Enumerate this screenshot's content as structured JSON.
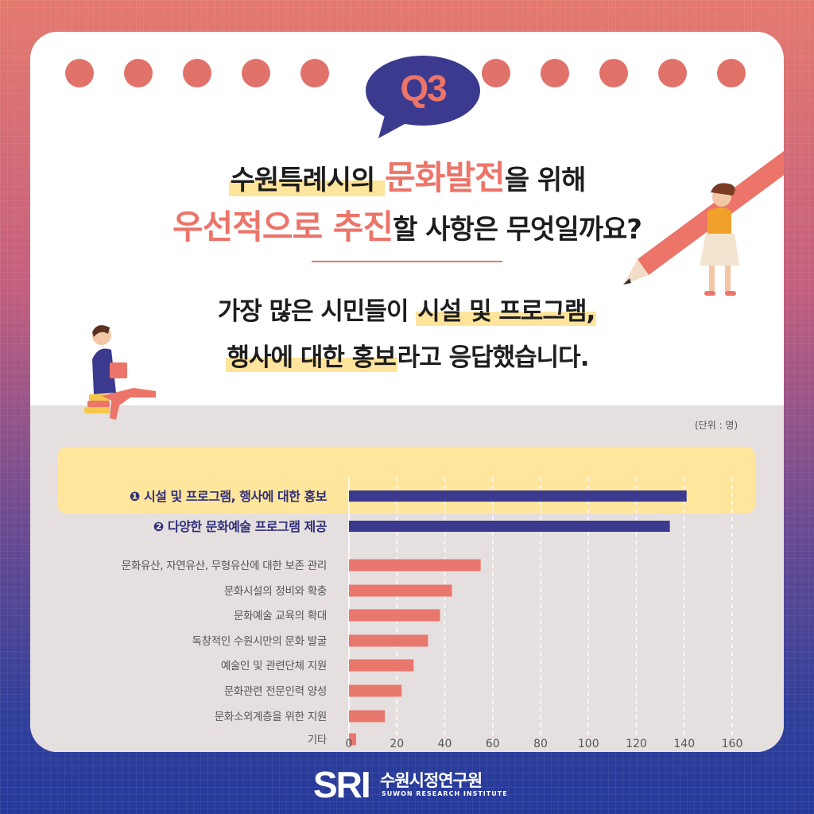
{
  "badge": {
    "text": "Q3"
  },
  "question": {
    "line1_pre": "수원특례시의 ",
    "line1_highlight": "문화발전",
    "line1_post": "을 위해",
    "line2_highlight": "우선적으로 추진",
    "line2_post": "할 사항은 무엇일까요?"
  },
  "answer": {
    "line1_pre": "가장 많은 시민들이 ",
    "line1_highlight": "시설 및 프로그램,",
    "line2_highlight": "행사에 대한 홍보",
    "line2_post": "라고 응답했습니다."
  },
  "unit_label": "(단위 : 명)",
  "logo": {
    "mark": "SRI",
    "name": "수원시정연구원",
    "subtitle": "SUWON RESEARCH INSTITUTE"
  },
  "colors": {
    "accent": "#ec7469",
    "highlight": "#ffe69c",
    "navy": "#3b3a8f",
    "bar_other": "#e8776d"
  },
  "chart_data": {
    "type": "bar",
    "orientation": "horizontal",
    "categories": [
      "❶ 시설 및 프로그램, 행사에 대한 홍보",
      "❷ 다양한 문화예술 프로그램 제공",
      "문화유산, 자연유산, 무형유산에 대한 보존 관리",
      "문화시설의 정비와 확충",
      "문화예술 교육의 확대",
      "독창적인 수원시만의 문화 발굴",
      "예술인 및 관련단체 지원",
      "문화관련 전문인력 양성",
      "문화소외계층을 위한 지원",
      "기타"
    ],
    "values": [
      141,
      134,
      55,
      43,
      38,
      33,
      27,
      22,
      15,
      3
    ],
    "highlighted": [
      true,
      true,
      false,
      false,
      false,
      false,
      false,
      false,
      false,
      false
    ],
    "xlim": [
      0,
      160
    ],
    "xticks": [
      0,
      20,
      40,
      60,
      80,
      100,
      120,
      140,
      160
    ],
    "grid": "vertical dashed"
  }
}
